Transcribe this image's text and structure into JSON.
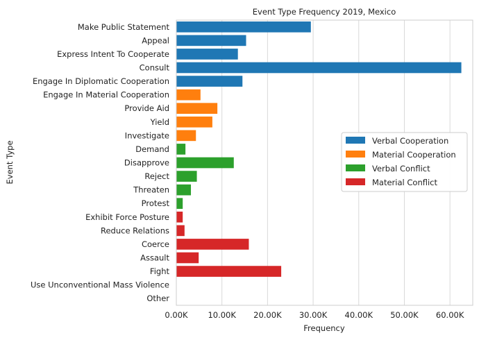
{
  "chart_data": {
    "type": "bar",
    "orientation": "horizontal",
    "title": "Event Type Frequency 2019, Mexico",
    "xlabel": "Frequency",
    "ylabel": "Event Type",
    "xlim": [
      0,
      65000
    ],
    "x_ticks": [
      0,
      10000,
      20000,
      30000,
      40000,
      50000,
      60000
    ],
    "x_tick_labels": [
      "0.00K",
      "10.00K",
      "20.00K",
      "30.00K",
      "40.00K",
      "50.00K",
      "60.00K"
    ],
    "grid": "vertical",
    "legend_position": "right",
    "series": [
      {
        "name": "Verbal Cooperation",
        "color": "#1f77b4"
      },
      {
        "name": "Material Cooperation",
        "color": "#ff7f0e"
      },
      {
        "name": "Verbal Conflict",
        "color": "#2ca02c"
      },
      {
        "name": "Material Conflict",
        "color": "#d62728"
      }
    ],
    "bars": [
      {
        "category": "Make Public Statement",
        "value": 29500,
        "series": 0
      },
      {
        "category": "Appeal",
        "value": 15300,
        "series": 0
      },
      {
        "category": "Express Intent To Cooperate",
        "value": 13500,
        "series": 0
      },
      {
        "category": "Consult",
        "value": 62500,
        "series": 0
      },
      {
        "category": "Engage In Diplomatic Cooperation",
        "value": 14500,
        "series": 0
      },
      {
        "category": "Engage In Material Cooperation",
        "value": 5300,
        "series": 1
      },
      {
        "category": "Provide Aid",
        "value": 9000,
        "series": 1
      },
      {
        "category": "Yield",
        "value": 7900,
        "series": 1
      },
      {
        "category": "Investigate",
        "value": 4300,
        "series": 1
      },
      {
        "category": "Demand",
        "value": 2000,
        "series": 2
      },
      {
        "category": "Disapprove",
        "value": 12600,
        "series": 2
      },
      {
        "category": "Reject",
        "value": 4500,
        "series": 2
      },
      {
        "category": "Threaten",
        "value": 3200,
        "series": 2
      },
      {
        "category": "Protest",
        "value": 1400,
        "series": 2
      },
      {
        "category": "Exhibit Force Posture",
        "value": 1400,
        "series": 3
      },
      {
        "category": "Reduce Relations",
        "value": 1800,
        "series": 3
      },
      {
        "category": "Coerce",
        "value": 15900,
        "series": 3
      },
      {
        "category": "Assault",
        "value": 4900,
        "series": 3
      },
      {
        "category": "Fight",
        "value": 23000,
        "series": 3
      },
      {
        "category": "Use Unconventional Mass Violence",
        "value": 0,
        "series": 3
      },
      {
        "category": "Other",
        "value": 0,
        "series": 3
      }
    ]
  }
}
